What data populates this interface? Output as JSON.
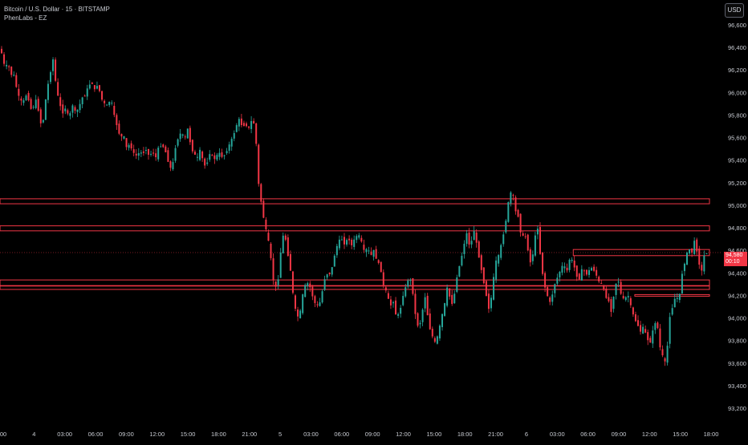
{
  "header": {
    "symbol_line": "Bitcoin / U.S. Dollar · 15 · BITSTAMP",
    "indicator": "PhenLabs - EZ"
  },
  "currency_button": "USD",
  "last_price": {
    "value": "94,580",
    "countdown": "00:10",
    "color": "#f23645"
  },
  "colors": {
    "up": "#26a69a",
    "down": "#f23645",
    "zone": "#f23645",
    "background": "#000000",
    "axis_text": "#c8cbd2"
  },
  "chart_data": {
    "type": "candlestick",
    "title": "",
    "ylim": [
      93100,
      96700
    ],
    "y_ticks": [
      93200,
      93400,
      93600,
      93800,
      94000,
      94200,
      94400,
      94600,
      94800,
      95000,
      95200,
      95400,
      95600,
      95800,
      96000,
      96200,
      96400,
      96600
    ],
    "y_tick_labels": [
      "93,200",
      "93,400",
      "93,600",
      "93,800",
      "94,000",
      "94,200",
      "94,400",
      "94,600",
      "94,800",
      "95,000",
      "95,200",
      "95,400",
      "95,600",
      "95,800",
      "96,000",
      "96,200",
      "96,400",
      "96,600"
    ],
    "x_tick_labels": [
      "00",
      "4",
      "03:00",
      "06:00",
      "09:00",
      "12:00",
      "15:00",
      "18:00",
      "21:00",
      "5",
      "03:00",
      "06:00",
      "09:00",
      "12:00",
      "15:00",
      "18:00",
      "21:00",
      "6",
      "03:00",
      "06:00",
      "09:00",
      "12:00",
      "15:00",
      "18:00"
    ],
    "price_trace": [
      [
        0,
        96400
      ],
      [
        4,
        96350
      ],
      [
        8,
        96220
      ],
      [
        12,
        96250
      ],
      [
        16,
        96160
      ],
      [
        20,
        96150
      ],
      [
        24,
        95980
      ],
      [
        30,
        95900
      ],
      [
        36,
        96000
      ],
      [
        40,
        95850
      ],
      [
        44,
        95880
      ],
      [
        48,
        95950
      ],
      [
        52,
        95720
      ],
      [
        56,
        95760
      ],
      [
        60,
        96000
      ],
      [
        64,
        96150
      ],
      [
        68,
        96300
      ],
      [
        72,
        96050
      ],
      [
        76,
        95900
      ],
      [
        80,
        95820
      ],
      [
        84,
        95870
      ],
      [
        88,
        95760
      ],
      [
        92,
        95900
      ],
      [
        96,
        95820
      ],
      [
        100,
        95860
      ],
      [
        104,
        95950
      ],
      [
        108,
        95980
      ],
      [
        112,
        96050
      ],
      [
        116,
        96100
      ],
      [
        120,
        96020
      ],
      [
        124,
        96080
      ],
      [
        128,
        95950
      ],
      [
        132,
        95900
      ],
      [
        136,
        95880
      ],
      [
        140,
        95950
      ],
      [
        144,
        95800
      ],
      [
        148,
        95700
      ],
      [
        152,
        95600
      ],
      [
        156,
        95620
      ],
      [
        160,
        95500
      ],
      [
        164,
        95550
      ],
      [
        168,
        95460
      ],
      [
        172,
        95440
      ],
      [
        176,
        95470
      ],
      [
        180,
        95460
      ],
      [
        184,
        95500
      ],
      [
        188,
        95430
      ],
      [
        192,
        95480
      ],
      [
        196,
        95420
      ],
      [
        200,
        95520
      ],
      [
        204,
        95540
      ],
      [
        208,
        95480
      ],
      [
        212,
        95380
      ],
      [
        216,
        95300
      ],
      [
        220,
        95500
      ],
      [
        224,
        95600
      ],
      [
        228,
        95650
      ],
      [
        232,
        95580
      ],
      [
        236,
        95680
      ],
      [
        240,
        95520
      ],
      [
        244,
        95450
      ],
      [
        248,
        95420
      ],
      [
        252,
        95500
      ],
      [
        256,
        95340
      ],
      [
        260,
        95380
      ],
      [
        264,
        95480
      ],
      [
        268,
        95400
      ],
      [
        272,
        95440
      ],
      [
        276,
        95460
      ],
      [
        280,
        95420
      ],
      [
        284,
        95480
      ],
      [
        288,
        95540
      ],
      [
        292,
        95600
      ],
      [
        296,
        95700
      ],
      [
        300,
        95760
      ],
      [
        304,
        95700
      ],
      [
        308,
        95720
      ],
      [
        312,
        95680
      ],
      [
        316,
        95760
      ],
      [
        320,
        95700
      ],
      [
        324,
        95200
      ],
      [
        328,
        95000
      ],
      [
        332,
        94820
      ],
      [
        336,
        94700
      ],
      [
        340,
        94500
      ],
      [
        344,
        94250
      ],
      [
        348,
        94300
      ],
      [
        352,
        94600
      ],
      [
        356,
        94780
      ],
      [
        360,
        94600
      ],
      [
        364,
        94420
      ],
      [
        368,
        94150
      ],
      [
        372,
        94000
      ],
      [
        376,
        94050
      ],
      [
        380,
        94240
      ],
      [
        384,
        94320
      ],
      [
        388,
        94280
      ],
      [
        392,
        94180
      ],
      [
        396,
        94100
      ],
      [
        400,
        94120
      ],
      [
        404,
        94250
      ],
      [
        408,
        94400
      ],
      [
        412,
        94380
      ],
      [
        416,
        94450
      ],
      [
        420,
        94600
      ],
      [
        424,
        94680
      ],
      [
        428,
        94700
      ],
      [
        432,
        94650
      ],
      [
        436,
        94720
      ],
      [
        440,
        94640
      ],
      [
        444,
        94700
      ],
      [
        448,
        94750
      ],
      [
        452,
        94680
      ],
      [
        456,
        94580
      ],
      [
        460,
        94620
      ],
      [
        464,
        94550
      ],
      [
        468,
        94600
      ],
      [
        472,
        94500
      ],
      [
        476,
        94450
      ],
      [
        480,
        94280
      ],
      [
        484,
        94220
      ],
      [
        488,
        94100
      ],
      [
        492,
        94150
      ],
      [
        496,
        94000
      ],
      [
        500,
        94050
      ],
      [
        504,
        94200
      ],
      [
        508,
        94280
      ],
      [
        512,
        94380
      ],
      [
        516,
        94250
      ],
      [
        520,
        94000
      ],
      [
        524,
        93900
      ],
      [
        528,
        94050
      ],
      [
        532,
        94200
      ],
      [
        536,
        93950
      ],
      [
        540,
        93850
      ],
      [
        544,
        93780
      ],
      [
        548,
        93850
      ],
      [
        552,
        94000
      ],
      [
        556,
        94120
      ],
      [
        560,
        94300
      ],
      [
        564,
        94100
      ],
      [
        568,
        94200
      ],
      [
        572,
        94400
      ],
      [
        576,
        94500
      ],
      [
        580,
        94650
      ],
      [
        584,
        94760
      ],
      [
        588,
        94600
      ],
      [
        592,
        94800
      ],
      [
        596,
        94650
      ],
      [
        600,
        94500
      ],
      [
        604,
        94350
      ],
      [
        608,
        94200
      ],
      [
        612,
        94050
      ],
      [
        616,
        94300
      ],
      [
        620,
        94500
      ],
      [
        624,
        94560
      ],
      [
        628,
        94700
      ],
      [
        632,
        94850
      ],
      [
        636,
        95050
      ],
      [
        640,
        95150
      ],
      [
        644,
        94950
      ],
      [
        648,
        94900
      ],
      [
        652,
        94700
      ],
      [
        656,
        94750
      ],
      [
        660,
        94600
      ],
      [
        664,
        94450
      ],
      [
        668,
        94700
      ],
      [
        672,
        94800
      ],
      [
        676,
        94500
      ],
      [
        680,
        94300
      ],
      [
        684,
        94200
      ],
      [
        688,
        94120
      ],
      [
        692,
        94280
      ],
      [
        696,
        94350
      ],
      [
        700,
        94420
      ],
      [
        704,
        94480
      ],
      [
        708,
        94400
      ],
      [
        712,
        94530
      ],
      [
        716,
        94500
      ],
      [
        720,
        94380
      ],
      [
        724,
        94350
      ],
      [
        728,
        94450
      ],
      [
        732,
        94380
      ],
      [
        736,
        94420
      ],
      [
        740,
        94450
      ],
      [
        744,
        94400
      ],
      [
        748,
        94320
      ],
      [
        752,
        94300
      ],
      [
        756,
        94200
      ],
      [
        760,
        94160
      ],
      [
        764,
        94050
      ],
      [
        768,
        94280
      ],
      [
        772,
        94350
      ],
      [
        776,
        94200
      ],
      [
        780,
        94150
      ],
      [
        784,
        94220
      ],
      [
        788,
        94100
      ],
      [
        792,
        94000
      ],
      [
        796,
        93950
      ],
      [
        800,
        93880
      ],
      [
        804,
        93920
      ],
      [
        808,
        93820
      ],
      [
        812,
        93780
      ],
      [
        816,
        93900
      ],
      [
        820,
        94000
      ],
      [
        824,
        93750
      ],
      [
        828,
        93650
      ],
      [
        832,
        93580
      ],
      [
        836,
        94000
      ],
      [
        840,
        94100
      ],
      [
        844,
        94200
      ],
      [
        848,
        94150
      ],
      [
        852,
        94400
      ],
      [
        856,
        94520
      ],
      [
        860,
        94620
      ],
      [
        864,
        94580
      ],
      [
        868,
        94700
      ],
      [
        872,
        94520
      ],
      [
        876,
        94400
      ],
      [
        880,
        94580
      ]
    ],
    "zones": [
      {
        "low": 95020,
        "high": 95050
      },
      {
        "low": 94780,
        "high": 94810
      },
      {
        "low": 94290,
        "high": 94330
      },
      {
        "low": 94260,
        "high": 94280
      },
      {
        "low": 94560,
        "high": 94600,
        "start_x_label": "03:00"
      },
      {
        "low": 94200,
        "high": 94200,
        "start_x_label": "09:00"
      }
    ],
    "last_price_line": 94580
  }
}
